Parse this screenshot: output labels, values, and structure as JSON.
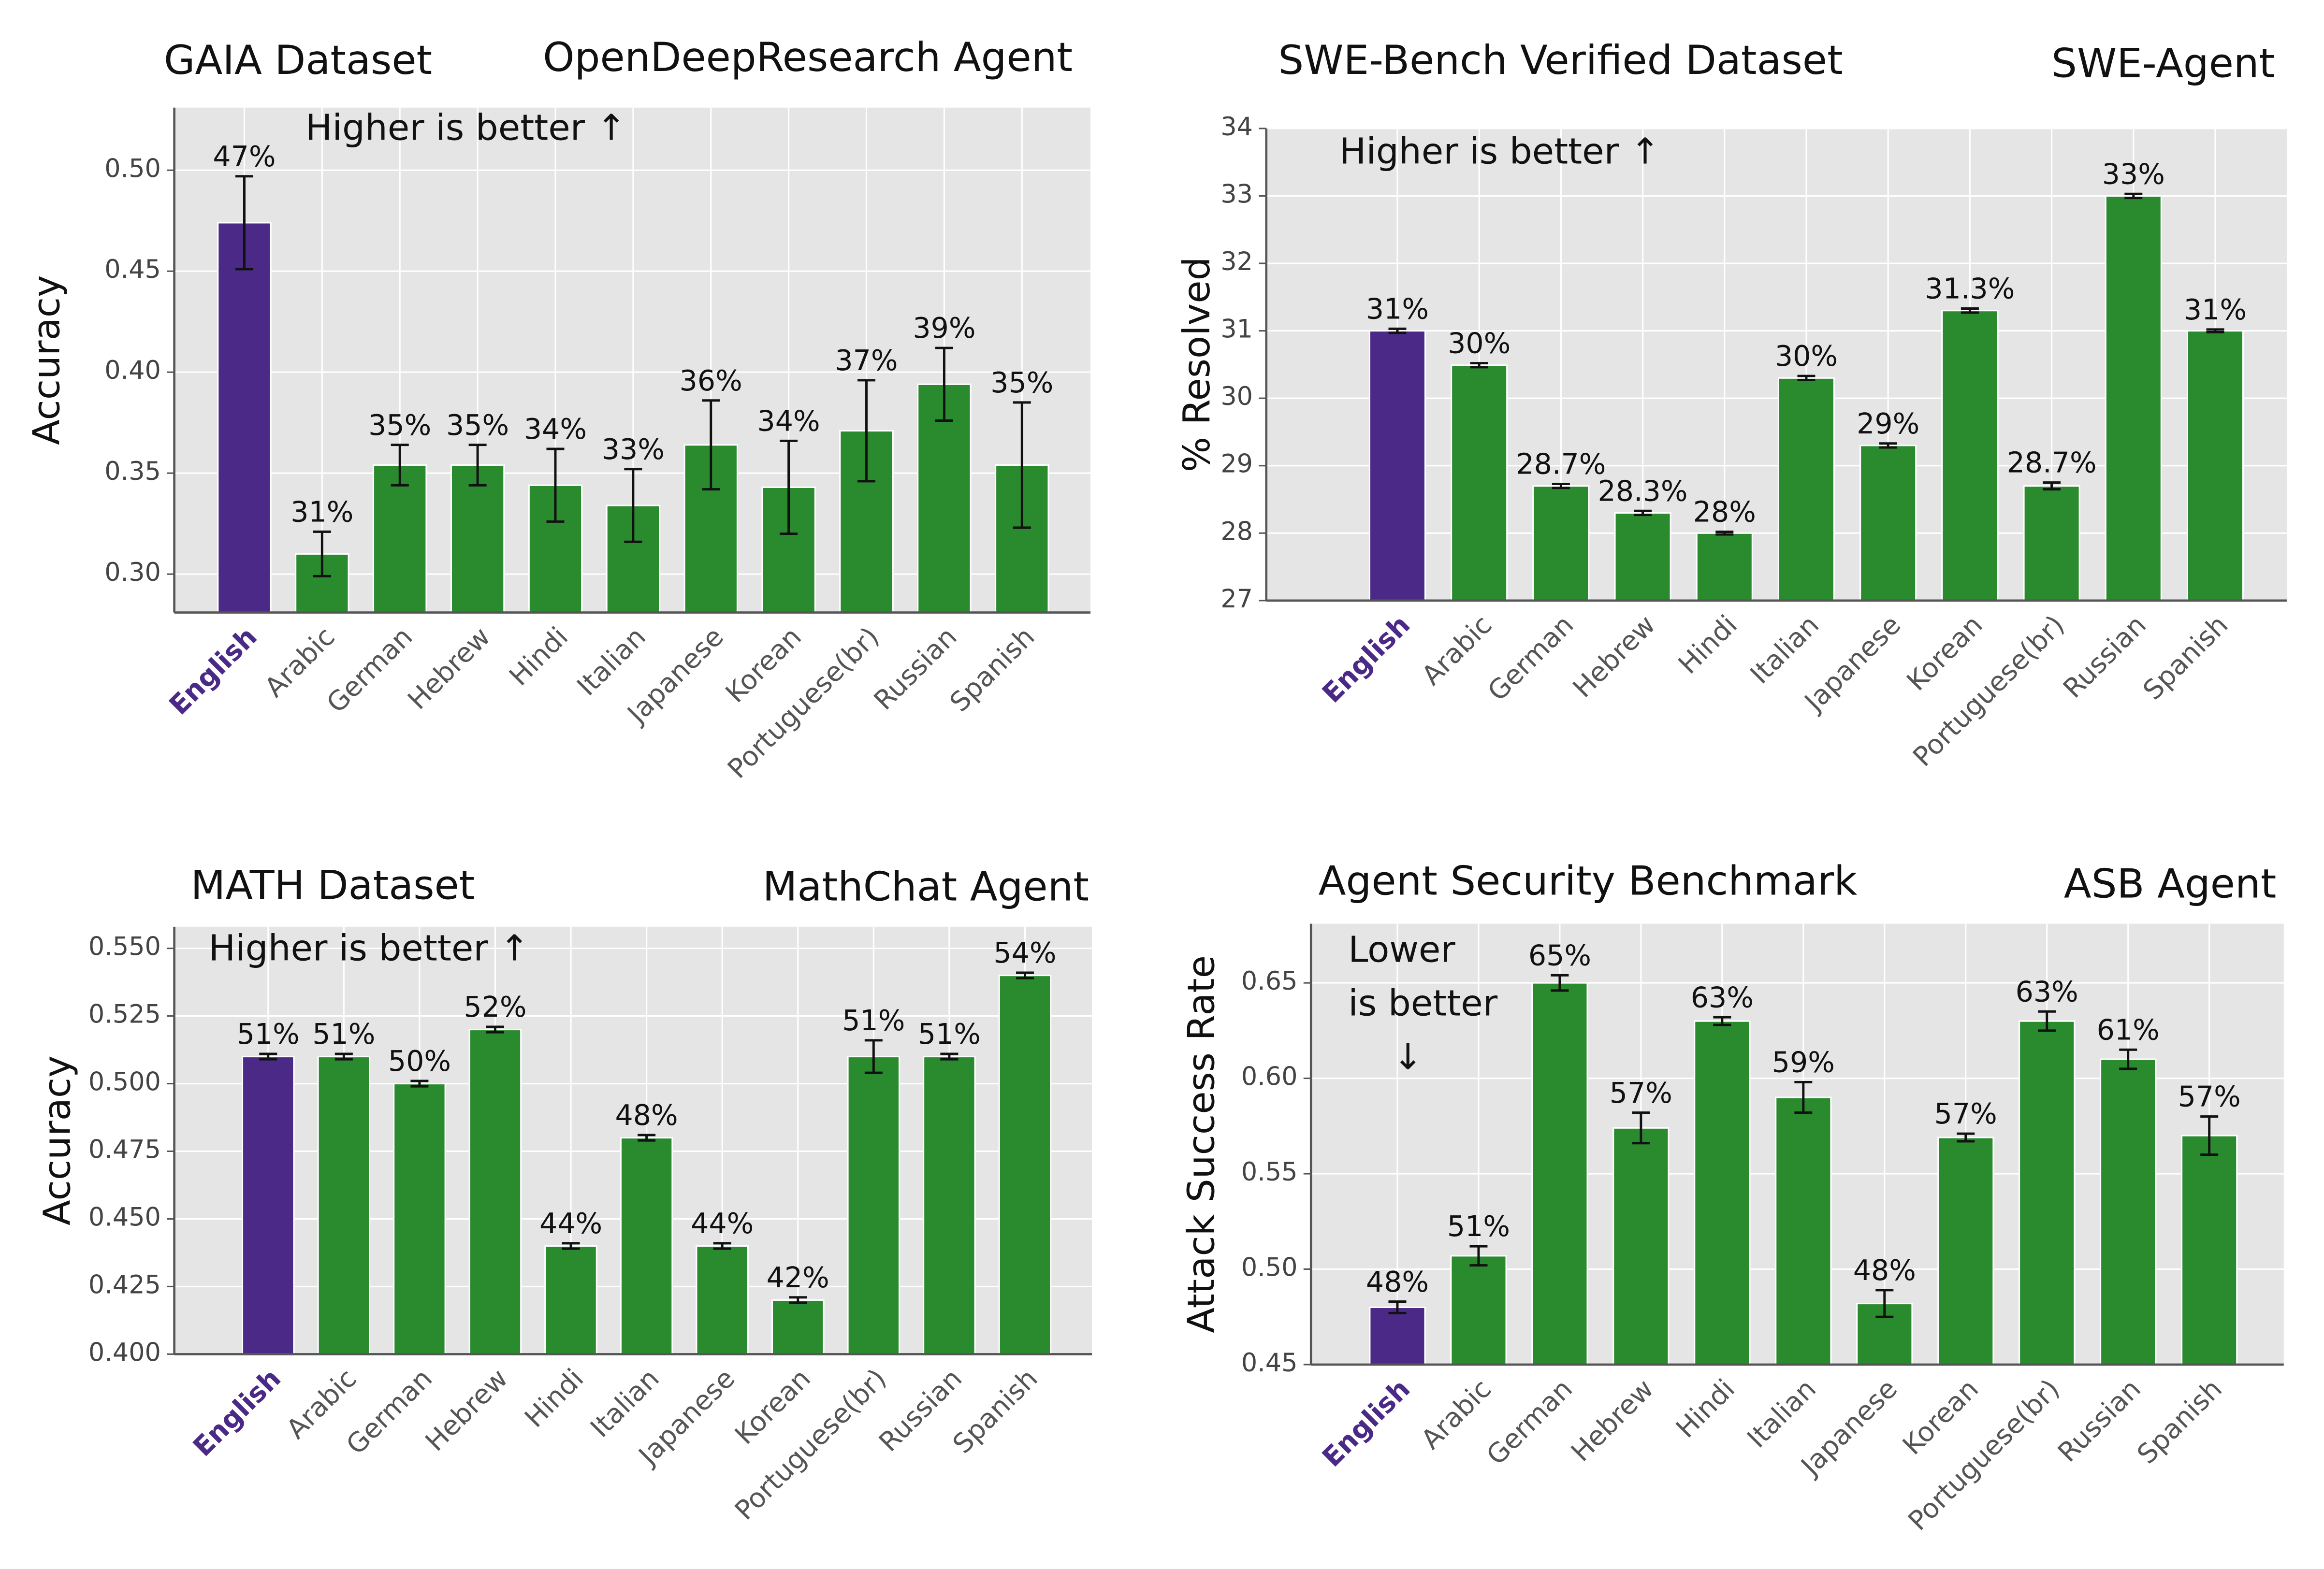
{
  "chart_data": [
    {
      "type": "bar",
      "title": "GAIA Dataset",
      "agent": "OpenDeepResearch Agent",
      "annotation": "Higher is better ↑",
      "ylabel": "Accuracy",
      "categories": [
        "English",
        "Arabic",
        "German",
        "Hebrew",
        "Hindi",
        "Italian",
        "Japanese",
        "Korean",
        "Portuguese(br)",
        "Russian",
        "Spanish"
      ],
      "values": [
        0.474,
        0.31,
        0.354,
        0.354,
        0.344,
        0.334,
        0.364,
        0.343,
        0.371,
        0.394,
        0.354
      ],
      "errors": [
        0.023,
        0.011,
        0.01,
        0.01,
        0.018,
        0.018,
        0.022,
        0.023,
        0.025,
        0.018,
        0.031
      ],
      "value_labels": [
        "47%",
        "31%",
        "35%",
        "35%",
        "34%",
        "33%",
        "36%",
        "34%",
        "37%",
        "39%",
        "35%"
      ],
      "colors": [
        "#4b2a87",
        "#2a8a2e",
        "#2a8a2e",
        "#2a8a2e",
        "#2a8a2e",
        "#2a8a2e",
        "#2a8a2e",
        "#2a8a2e",
        "#2a8a2e",
        "#2a8a2e",
        "#2a8a2e"
      ],
      "ylim": [
        0.281,
        0.531
      ],
      "yticks": [
        {
          "value": 0.3,
          "label": "0.30"
        },
        0.35,
        {
          "value": 0.4,
          "label": "0.40"
        },
        0.45,
        {
          "value": 0.5,
          "label": "0.50"
        }
      ],
      "grid": true
    },
    {
      "type": "bar",
      "title": "SWE-Bench Verified Dataset",
      "agent": "SWE-Agent",
      "annotation": "Higher is better ↑",
      "ylabel": "% Resolved",
      "categories": [
        "English",
        "Arabic",
        "German",
        "Hebrew",
        "Hindi",
        "Italian",
        "Japanese",
        "Korean",
        "Portuguese(br)",
        "Russian",
        "Spanish"
      ],
      "values": [
        31.0,
        30.49,
        28.7,
        28.3,
        28.0,
        30.3,
        29.3,
        31.3,
        28.7,
        33.0,
        31.0
      ],
      "errors": [
        0.03,
        0.03,
        0.03,
        0.03,
        0.02,
        0.03,
        0.03,
        0.03,
        0.05,
        0.03,
        0.02
      ],
      "value_labels": [
        "31%",
        "30%",
        "28.7%",
        "28.3%",
        "28%",
        "30%",
        "29%",
        "31.3%",
        "28.7%",
        "33%",
        "31%"
      ],
      "colors": [
        "#4b2a87",
        "#2a8a2e",
        "#2a8a2e",
        "#2a8a2e",
        "#2a8a2e",
        "#2a8a2e",
        "#2a8a2e",
        "#2a8a2e",
        "#2a8a2e",
        "#2a8a2e",
        "#2a8a2e"
      ],
      "ylim": [
        27,
        34
      ],
      "yticks": [
        27,
        28,
        29,
        30,
        31,
        32,
        33,
        34
      ],
      "grid": true
    },
    {
      "type": "bar",
      "title": "MATH Dataset",
      "agent": "MathChat Agent",
      "annotation": "Higher is better ↑",
      "ylabel": "Accuracy",
      "categories": [
        "English",
        "Arabic",
        "German",
        "Hebrew",
        "Hindi",
        "Italian",
        "Japanese",
        "Korean",
        "Portuguese(br)",
        "Russian",
        "Spanish"
      ],
      "values": [
        0.51,
        0.51,
        0.5,
        0.52,
        0.44,
        0.48,
        0.44,
        0.42,
        0.51,
        0.51,
        0.54
      ],
      "errors": [
        0.001,
        0.001,
        0.001,
        0.001,
        0.001,
        0.001,
        0.001,
        0.001,
        0.006,
        0.001,
        0.001
      ],
      "value_labels": [
        "51%",
        "51%",
        "50%",
        "52%",
        "44%",
        "48%",
        "44%",
        "42%",
        "51%",
        "51%",
        "54%"
      ],
      "colors": [
        "#4b2a87",
        "#2a8a2e",
        "#2a8a2e",
        "#2a8a2e",
        "#2a8a2e",
        "#2a8a2e",
        "#2a8a2e",
        "#2a8a2e",
        "#2a8a2e",
        "#2a8a2e",
        "#2a8a2e"
      ],
      "ylim": [
        0.4,
        0.558
      ],
      "yticks": [
        {
          "value": 0.4,
          "label": "0.400"
        },
        0.425,
        {
          "value": 0.45,
          "label": "0.450"
        },
        0.475,
        {
          "value": 0.5,
          "label": "0.500"
        },
        0.525,
        {
          "value": 0.55,
          "label": "0.550"
        }
      ],
      "grid": true
    },
    {
      "type": "bar",
      "title": "Agent Security Benchmark",
      "agent": "ASB Agent",
      "annotation": [
        "Lower",
        "is better",
        "↓"
      ],
      "ylabel": "Attack Success Rate",
      "categories": [
        "English",
        "Arabic",
        "German",
        "Hebrew",
        "Hindi",
        "Italian",
        "Japanese",
        "Korean",
        "Portuguese(br)",
        "Russian",
        "Spanish"
      ],
      "values": [
        0.48,
        0.507,
        0.65,
        0.574,
        0.63,
        0.59,
        0.482,
        0.569,
        0.63,
        0.61,
        0.57
      ],
      "errors": [
        0.003,
        0.005,
        0.004,
        0.008,
        0.002,
        0.008,
        0.007,
        0.002,
        0.005,
        0.005,
        0.01
      ],
      "value_labels": [
        "48%",
        "51%",
        "65%",
        "57%",
        "63%",
        "59%",
        "48%",
        "57%",
        "63%",
        "61%",
        "57%"
      ],
      "colors": [
        "#4b2a87",
        "#2a8a2e",
        "#2a8a2e",
        "#2a8a2e",
        "#2a8a2e",
        "#2a8a2e",
        "#2a8a2e",
        "#2a8a2e",
        "#2a8a2e",
        "#2a8a2e",
        "#2a8a2e"
      ],
      "ylim": [
        0.45,
        0.681
      ],
      "yticks": [
        0.45,
        {
          "value": 0.5,
          "label": "0.50"
        },
        0.55,
        {
          "value": 0.6,
          "label": "0.60"
        },
        0.65
      ],
      "grid": true
    }
  ]
}
